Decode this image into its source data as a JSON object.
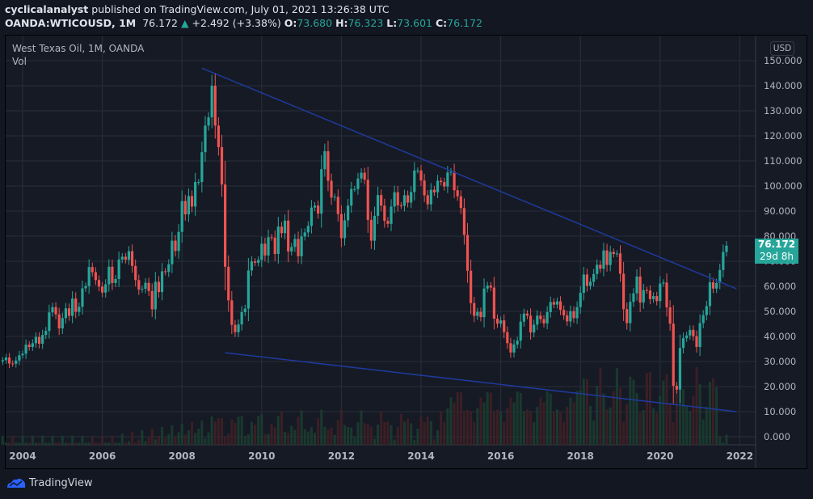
{
  "header": {
    "author": "cyclicalanalyst",
    "published_text": "published on TradingView.com, July 01, 2021 13:26:38 UTC",
    "symbol": "OANDA:WTICOUSD, 1M",
    "last": "76.172",
    "change_arrow": "▲",
    "change": "+2.492 (+3.38%)",
    "o_label": "O:",
    "o": "73.680",
    "h_label": "H:",
    "h": "76.323",
    "l_label": "L:",
    "l": "73.601",
    "c_label": "C:",
    "c": "76.172"
  },
  "legend": {
    "title": "West Texas Oil, 1M, OANDA",
    "vol": "Vol"
  },
  "currency": "USD",
  "price_tag": {
    "price": "76.172",
    "countdown": "29d 8h"
  },
  "footer": {
    "brand": "TradingView"
  },
  "colors": {
    "up": "#26a69a",
    "down": "#ef5350",
    "trendline": "#1e3a9c",
    "bg": "#161a25",
    "grid": "#2a2e39"
  },
  "chart_data": {
    "type": "candlestick",
    "title": "West Texas Oil, 1M, OANDA",
    "xlabel": "",
    "ylabel": "USD",
    "ylim": [
      0,
      150
    ],
    "y_ticks": [
      "150.000",
      "140.000",
      "130.000",
      "120.000",
      "110.000",
      "100.000",
      "90.000",
      "80.000",
      "70.000",
      "60.000",
      "50.000",
      "40.000",
      "30.000",
      "20.000",
      "10.000",
      "0.000"
    ],
    "x_ticks": [
      "2004",
      "2006",
      "2008",
      "2010",
      "2012",
      "2014",
      "2016",
      "2018",
      "2020",
      "2022"
    ],
    "start": "2003-07",
    "interval": "1M",
    "closes": [
      30.5,
      31.6,
      29.2,
      29.1,
      30.4,
      32.5,
      33.1,
      36.7,
      35.8,
      37.3,
      39.8,
      37.1,
      40.6,
      42.2,
      49.6,
      51.7,
      48.8,
      43.2,
      47.3,
      51.2,
      48.2,
      55.1,
      49.8,
      51.8,
      59.2,
      60.1,
      67.7,
      65.6,
      62.5,
      59.9,
      57.5,
      60.8,
      67.8,
      61.3,
      62.9,
      70.7,
      71.8,
      70.6,
      74.0,
      68.1,
      62.5,
      58.7,
      59.0,
      61.4,
      58.1,
      50.8,
      61.8,
      57.7,
      66.0,
      65.7,
      68.8,
      78.2,
      74.1,
      81.7,
      94.0,
      88.7,
      96.0,
      91.8,
      101.6,
      101.6,
      113.5,
      124.1,
      127.4,
      140.0,
      124.1,
      115.5,
      100.6,
      67.8,
      54.4,
      44.6,
      41.7,
      44.8,
      49.7,
      51.1,
      66.3,
      69.9,
      69.4,
      70.5,
      77.0,
      72.3,
      79.6,
      79.4,
      72.9,
      83.8,
      81.2,
      86.2,
      73.9,
      75.7,
      78.9,
      72.0,
      79.9,
      81.5,
      84.1,
      91.4,
      92.2,
      89.0,
      106.7,
      113.9,
      102.1,
      95.4,
      95.7,
      88.8,
      79.2,
      86.3,
      92.2,
      98.8,
      98.8,
      103.0,
      105.3,
      102.5,
      86.5,
      78.2,
      88.1,
      96.4,
      92.2,
      86.1,
      84.9,
      91.8,
      97.5,
      92.3,
      92.1,
      96.3,
      93.4,
      97.6,
      106.2,
      106.2,
      102.2,
      96.3,
      92.7,
      98.5,
      97.5,
      102.1,
      101.6,
      99.8,
      105.4,
      105.8,
      98.3,
      95.9,
      91.2,
      80.5,
      66.2,
      53.3,
      48.2,
      49.8,
      47.7,
      59.1,
      60.3,
      59.5,
      47.1,
      45.1,
      46.4,
      41.7,
      37.3,
      33.6,
      36.8,
      38.3,
      45.9,
      49.1,
      48.3,
      41.6,
      44.7,
      48.3,
      46.9,
      45.2,
      49.7,
      53.7,
      52.7,
      54.0,
      50.6,
      48.4,
      46.0,
      50.1,
      47.3,
      51.7,
      57.4,
      64.7,
      60.2,
      61.8,
      64.9,
      68.6,
      67.0,
      74.3,
      68.5,
      73.7,
      72.9,
      73.1,
      65.0,
      50.9,
      45.3,
      53.8,
      57.2,
      63.9,
      53.5,
      58.5,
      58.3,
      54.9,
      56.1,
      54.1,
      61.1,
      61.5,
      51.6,
      45.1,
      20.3,
      18.8,
      35.4,
      39.3,
      40.4,
      42.6,
      40.1,
      35.8,
      45.3,
      48.5,
      52.1,
      61.6,
      59.1,
      61.3,
      66.5,
      73.7,
      76.2
    ],
    "trendlines": [
      {
        "from": [
          "2008-07",
          147
        ],
        "to": [
          "2021-12",
          59
        ]
      },
      {
        "from": [
          "2009-02",
          33.5
        ],
        "to": [
          "2021-12",
          10
        ]
      }
    ]
  }
}
